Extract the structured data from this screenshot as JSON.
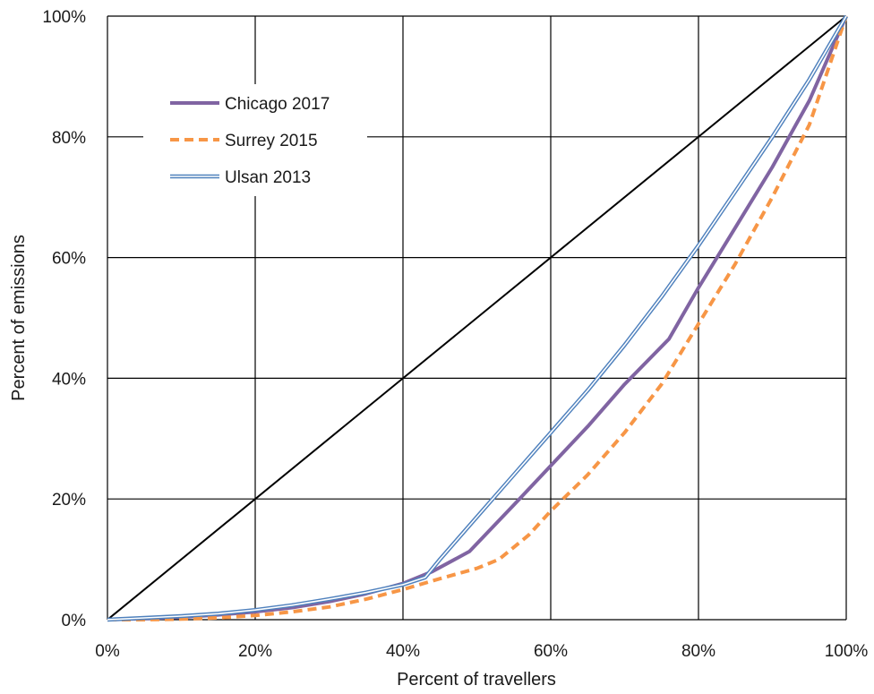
{
  "chart_data": {
    "type": "line",
    "title": "",
    "xlabel": "Percent of travellers",
    "ylabel": "Percent of emissions",
    "xlim": [
      0,
      100
    ],
    "ylim": [
      0,
      100
    ],
    "x_ticks": [
      "0%",
      "20%",
      "40%",
      "60%",
      "80%",
      "100%"
    ],
    "y_ticks": [
      "0%",
      "20%",
      "40%",
      "60%",
      "80%",
      "100%"
    ],
    "grid": true,
    "legend_position": "top-left",
    "equality_line": {
      "x": [
        0,
        100
      ],
      "y": [
        0,
        100
      ],
      "color": "#000000"
    },
    "series": [
      {
        "name": "Chicago 2017",
        "color": "#8064a2",
        "style": "solid",
        "x": [
          0,
          5,
          10,
          15,
          20,
          25,
          30,
          35,
          40,
          44,
          49,
          55,
          60,
          65,
          70,
          76,
          80,
          85,
          90,
          95,
          100
        ],
        "y": [
          0,
          0.2,
          0.4,
          0.8,
          1.3,
          2.0,
          3.0,
          4.3,
          6.0,
          8.0,
          11.3,
          19.0,
          25.5,
          32.0,
          39.0,
          46.5,
          55.0,
          65.0,
          75.0,
          86.0,
          100
        ]
      },
      {
        "name": "Surrey 2015",
        "color": "#f79646",
        "style": "dashed",
        "x": [
          0,
          5,
          10,
          15,
          20,
          25,
          30,
          35,
          40,
          45,
          50,
          53,
          57,
          60,
          65,
          70,
          75,
          80,
          85,
          90,
          95,
          100
        ],
        "y": [
          0,
          0,
          0.1,
          0.3,
          0.7,
          1.3,
          2.1,
          3.4,
          5.0,
          6.8,
          8.5,
          10.0,
          14.0,
          18.0,
          24.0,
          31.0,
          39.0,
          49.0,
          59.0,
          70.0,
          82.0,
          100
        ]
      },
      {
        "name": "Ulsan 2013",
        "color": "#4f81bd",
        "style": "double",
        "x": [
          0,
          5,
          10,
          15,
          20,
          25,
          30,
          35,
          40,
          43,
          45,
          50,
          55,
          60,
          65,
          70,
          75,
          80,
          85,
          90,
          95,
          100
        ],
        "y": [
          0,
          0.3,
          0.6,
          1.0,
          1.6,
          2.4,
          3.4,
          4.5,
          5.8,
          7.0,
          10.0,
          17.0,
          24.0,
          31.0,
          38.0,
          45.5,
          53.5,
          62.0,
          71.0,
          80.0,
          89.5,
          100
        ]
      }
    ]
  }
}
